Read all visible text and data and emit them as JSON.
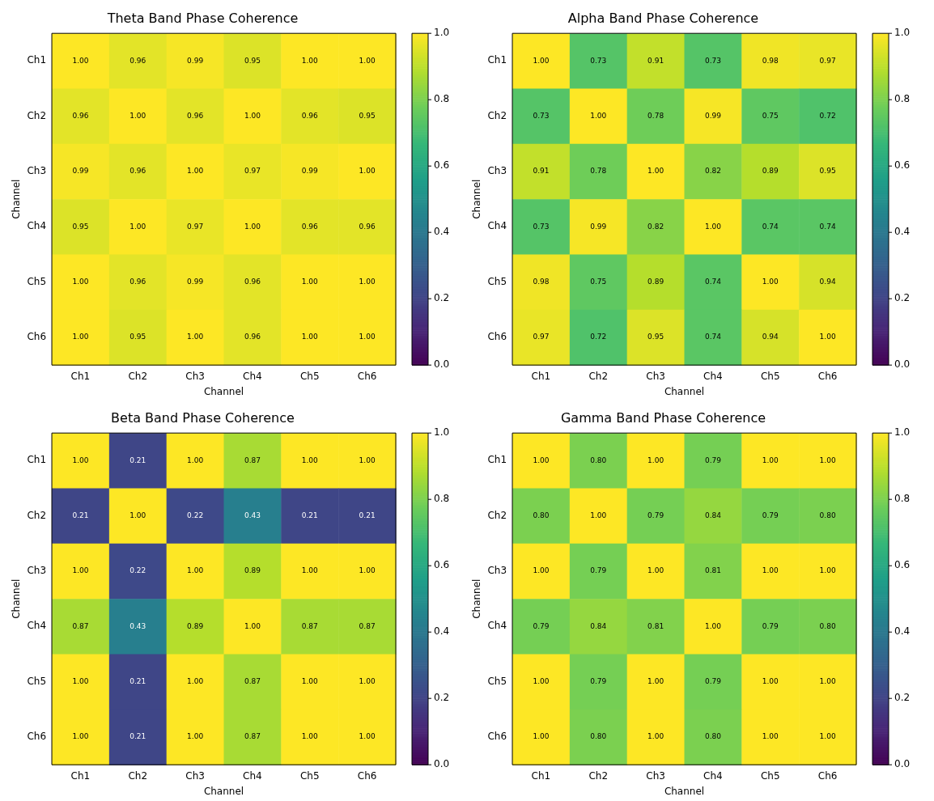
{
  "chart_data": [
    {
      "type": "heatmap",
      "title": "Theta Band Phase Coherence",
      "xlabel": "Channel",
      "ylabel": "Channel",
      "categories": [
        "Ch1",
        "Ch2",
        "Ch3",
        "Ch4",
        "Ch5",
        "Ch6"
      ],
      "y_categories": [
        "Ch1",
        "Ch2",
        "Ch3",
        "Ch4",
        "Ch5",
        "Ch6"
      ],
      "cells": [
        [
          1.0,
          0.96,
          0.99,
          0.95,
          1.0,
          1.0
        ],
        [
          0.96,
          1.0,
          0.96,
          1.0,
          0.96,
          0.95
        ],
        [
          0.99,
          0.96,
          1.0,
          0.97,
          0.99,
          1.0
        ],
        [
          0.95,
          1.0,
          0.97,
          1.0,
          0.96,
          0.96
        ],
        [
          1.0,
          0.96,
          0.99,
          0.96,
          1.0,
          1.0
        ],
        [
          1.0,
          0.95,
          1.0,
          0.96,
          1.0,
          1.0
        ]
      ],
      "cell_labels": [
        [
          "1.00",
          "0.96",
          "0.99",
          "0.95",
          "1.00",
          "1.00"
        ],
        [
          "0.96",
          "1.00",
          "0.96",
          "1.00",
          "0.96",
          "0.95"
        ],
        [
          "0.99",
          "0.96",
          "1.00",
          "0.97",
          "0.99",
          "1.00"
        ],
        [
          "0.95",
          "1.00",
          "0.97",
          "1.00",
          "0.96",
          "0.96"
        ],
        [
          "1.00",
          "0.96",
          "0.99",
          "0.96",
          "1.00",
          "1.00"
        ],
        [
          "1.00",
          "0.95",
          "1.00",
          "0.96",
          "1.00",
          "1.00"
        ]
      ],
      "clim": [
        0,
        1
      ],
      "cticks": [
        {
          "value": 0,
          "label": "0.0"
        },
        {
          "value": 0.2,
          "label": "0.2"
        },
        {
          "value": 0.4,
          "label": "0.4"
        },
        {
          "value": 0.6,
          "label": "0.6"
        },
        {
          "value": 0.8,
          "label": "0.8"
        },
        {
          "value": 1,
          "label": "1.0"
        }
      ]
    },
    {
      "type": "heatmap",
      "title": "Alpha Band Phase Coherence",
      "xlabel": "Channel",
      "ylabel": "Channel",
      "categories": [
        "Ch1",
        "Ch2",
        "Ch3",
        "Ch4",
        "Ch5",
        "Ch6"
      ],
      "y_categories": [
        "Ch1",
        "Ch2",
        "Ch3",
        "Ch4",
        "Ch5",
        "Ch6"
      ],
      "cells": [
        [
          1.0,
          0.73,
          0.91,
          0.73,
          0.98,
          0.97
        ],
        [
          0.73,
          1.0,
          0.78,
          0.99,
          0.75,
          0.72
        ],
        [
          0.91,
          0.78,
          1.0,
          0.82,
          0.89,
          0.95
        ],
        [
          0.73,
          0.99,
          0.82,
          1.0,
          0.74,
          0.74
        ],
        [
          0.98,
          0.75,
          0.89,
          0.74,
          1.0,
          0.94
        ],
        [
          0.97,
          0.72,
          0.95,
          0.74,
          0.94,
          1.0
        ]
      ],
      "cell_labels": [
        [
          "1.00",
          "0.73",
          "0.91",
          "0.73",
          "0.98",
          "0.97"
        ],
        [
          "0.73",
          "1.00",
          "0.78",
          "0.99",
          "0.75",
          "0.72"
        ],
        [
          "0.91",
          "0.78",
          "1.00",
          "0.82",
          "0.89",
          "0.95"
        ],
        [
          "0.73",
          "0.99",
          "0.82",
          "1.00",
          "0.74",
          "0.74"
        ],
        [
          "0.98",
          "0.75",
          "0.89",
          "0.74",
          "1.00",
          "0.94"
        ],
        [
          "0.97",
          "0.72",
          "0.95",
          "0.74",
          "0.94",
          "1.00"
        ]
      ],
      "clim": [
        0,
        1
      ],
      "cticks": [
        {
          "value": 0,
          "label": "0.0"
        },
        {
          "value": 0.2,
          "label": "0.2"
        },
        {
          "value": 0.4,
          "label": "0.4"
        },
        {
          "value": 0.6,
          "label": "0.6"
        },
        {
          "value": 0.8,
          "label": "0.8"
        },
        {
          "value": 1,
          "label": "1.0"
        }
      ]
    },
    {
      "type": "heatmap",
      "title": "Beta Band Phase Coherence",
      "xlabel": "Channel",
      "ylabel": "Channel",
      "categories": [
        "Ch1",
        "Ch2",
        "Ch3",
        "Ch4",
        "Ch5",
        "Ch6"
      ],
      "y_categories": [
        "Ch1",
        "Ch2",
        "Ch3",
        "Ch4",
        "Ch5",
        "Ch6"
      ],
      "cells": [
        [
          1.0,
          0.21,
          1.0,
          0.87,
          1.0,
          1.0
        ],
        [
          0.21,
          1.0,
          0.22,
          0.43,
          0.21,
          0.21
        ],
        [
          1.0,
          0.22,
          1.0,
          0.89,
          1.0,
          1.0
        ],
        [
          0.87,
          0.43,
          0.89,
          1.0,
          0.87,
          0.87
        ],
        [
          1.0,
          0.21,
          1.0,
          0.87,
          1.0,
          1.0
        ],
        [
          1.0,
          0.21,
          1.0,
          0.87,
          1.0,
          1.0
        ]
      ],
      "cell_labels": [
        [
          "1.00",
          "0.21",
          "1.00",
          "0.87",
          "1.00",
          "1.00"
        ],
        [
          "0.21",
          "1.00",
          "0.22",
          "0.43",
          "0.21",
          "0.21"
        ],
        [
          "1.00",
          "0.22",
          "1.00",
          "0.89",
          "1.00",
          "1.00"
        ],
        [
          "0.87",
          "0.43",
          "0.89",
          "1.00",
          "0.87",
          "0.87"
        ],
        [
          "1.00",
          "0.21",
          "1.00",
          "0.87",
          "1.00",
          "1.00"
        ],
        [
          "1.00",
          "0.21",
          "1.00",
          "0.87",
          "1.00",
          "1.00"
        ]
      ],
      "clim": [
        0,
        1
      ],
      "cticks": [
        {
          "value": 0,
          "label": "0.0"
        },
        {
          "value": 0.2,
          "label": "0.2"
        },
        {
          "value": 0.4,
          "label": "0.4"
        },
        {
          "value": 0.6,
          "label": "0.6"
        },
        {
          "value": 0.8,
          "label": "0.8"
        },
        {
          "value": 1,
          "label": "1.0"
        }
      ]
    },
    {
      "type": "heatmap",
      "title": "Gamma Band Phase Coherence",
      "xlabel": "Channel",
      "ylabel": "Channel",
      "categories": [
        "Ch1",
        "Ch2",
        "Ch3",
        "Ch4",
        "Ch5",
        "Ch6"
      ],
      "y_categories": [
        "Ch1",
        "Ch2",
        "Ch3",
        "Ch4",
        "Ch5",
        "Ch6"
      ],
      "cells": [
        [
          1.0,
          0.8,
          1.0,
          0.79,
          1.0,
          1.0
        ],
        [
          0.8,
          1.0,
          0.79,
          0.84,
          0.79,
          0.8
        ],
        [
          1.0,
          0.79,
          1.0,
          0.81,
          1.0,
          1.0
        ],
        [
          0.79,
          0.84,
          0.81,
          1.0,
          0.79,
          0.8
        ],
        [
          1.0,
          0.79,
          1.0,
          0.79,
          1.0,
          1.0
        ],
        [
          1.0,
          0.8,
          1.0,
          0.8,
          1.0,
          1.0
        ]
      ],
      "cell_labels": [
        [
          "1.00",
          "0.80",
          "1.00",
          "0.79",
          "1.00",
          "1.00"
        ],
        [
          "0.80",
          "1.00",
          "0.79",
          "0.84",
          "0.79",
          "0.80"
        ],
        [
          "1.00",
          "0.79",
          "1.00",
          "0.81",
          "1.00",
          "1.00"
        ],
        [
          "0.79",
          "0.84",
          "0.81",
          "1.00",
          "0.79",
          "0.80"
        ],
        [
          "1.00",
          "0.79",
          "1.00",
          "0.79",
          "1.00",
          "1.00"
        ],
        [
          "1.00",
          "0.80",
          "1.00",
          "0.80",
          "1.00",
          "1.00"
        ]
      ],
      "clim": [
        0,
        1
      ],
      "cticks": [
        {
          "value": 0,
          "label": "0.0"
        },
        {
          "value": 0.2,
          "label": "0.2"
        },
        {
          "value": 0.4,
          "label": "0.4"
        },
        {
          "value": 0.6,
          "label": "0.6"
        },
        {
          "value": 0.8,
          "label": "0.8"
        },
        {
          "value": 1,
          "label": "1.0"
        }
      ]
    }
  ]
}
